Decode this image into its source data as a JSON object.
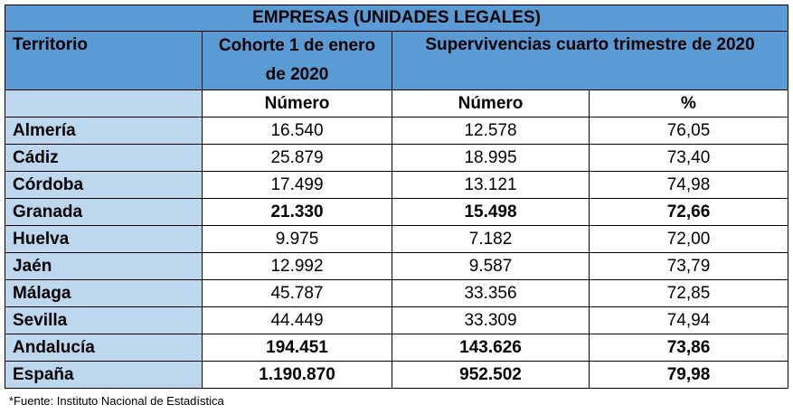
{
  "table": {
    "title": "EMPRESAS (UNIDADES LEGALES)",
    "headers": {
      "territory": "Territorio",
      "cohort": "Cohorte 1 de enero de 2020",
      "survival": "Supervivencias cuarto trimestre de 2020"
    },
    "subheaders": {
      "cohort_number": "Número",
      "survival_number": "Número",
      "survival_pct": "%"
    },
    "rows": [
      {
        "territory": "Almería",
        "cohort": "16.540",
        "survival": "12.578",
        "pct": "76,05",
        "bold": false
      },
      {
        "territory": "Cádiz",
        "cohort": "25.879",
        "survival": "18.995",
        "pct": "73,40",
        "bold": false
      },
      {
        "territory": "Córdoba",
        "cohort": "17.499",
        "survival": "13.121",
        "pct": "74,98",
        "bold": false
      },
      {
        "territory": "Granada",
        "cohort": "21.330",
        "survival": "15.498",
        "pct": "72,66",
        "bold": true
      },
      {
        "territory": "Huelva",
        "cohort": "9.975",
        "survival": "7.182",
        "pct": "72,00",
        "bold": false
      },
      {
        "territory": "Jaén",
        "cohort": "12.992",
        "survival": "9.587",
        "pct": "73,79",
        "bold": false
      },
      {
        "territory": "Málaga",
        "cohort": "45.787",
        "survival": "33.356",
        "pct": "72,85",
        "bold": false
      },
      {
        "territory": "Sevilla",
        "cohort": "44.449",
        "survival": "33.309",
        "pct": "74,94",
        "bold": false
      },
      {
        "territory": "Andalucía",
        "cohort": "194.451",
        "survival": "143.626",
        "pct": "73,86",
        "bold": true
      },
      {
        "territory": "España",
        "cohort": "1.190.870",
        "survival": "952.502",
        "pct": "79,98",
        "bold": true
      }
    ]
  },
  "footnote": "*Fuente: Instituto Nacional de Estadística",
  "colors": {
    "header_blue": "#5b9bd5",
    "light_blue": "#bdd7ee"
  }
}
